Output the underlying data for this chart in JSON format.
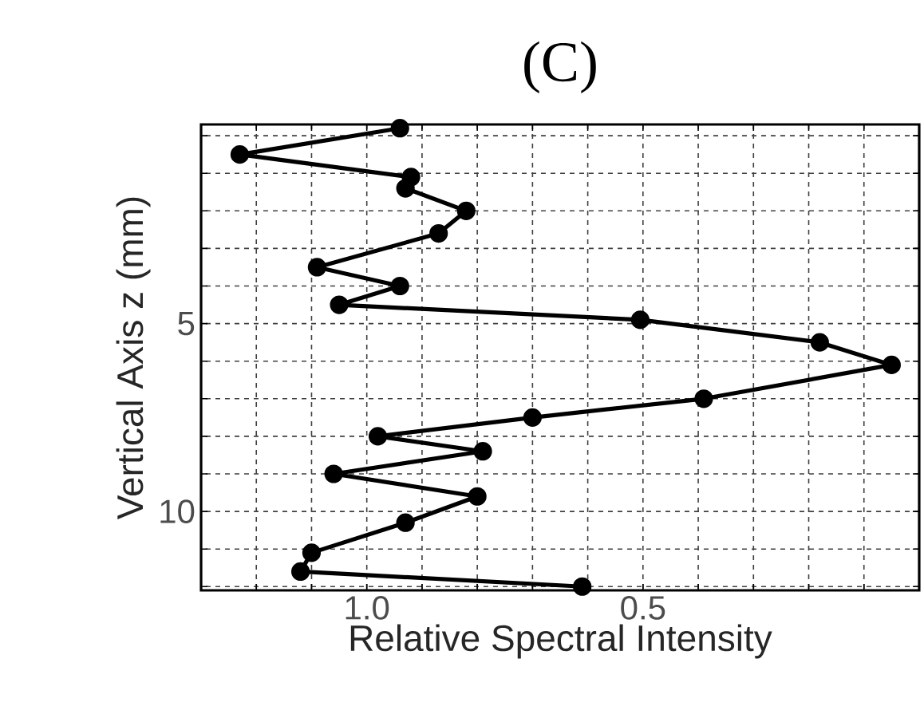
{
  "chart_data": {
    "type": "line",
    "title": "(C)",
    "xlabel": "Relative Spectral Intensity",
    "ylabel": "Vertical Axis z (mm)",
    "x": [
      0.94,
      1.23,
      0.92,
      0.93,
      0.82,
      0.87,
      1.09,
      0.94,
      1.05,
      0.505,
      0.18,
      0.05,
      0.39,
      0.7,
      0.98,
      0.79,
      1.06,
      0.8,
      0.93,
      1.1,
      1.12,
      0.61
    ],
    "values": [
      -0.2,
      0.5,
      1.1,
      1.4,
      2.0,
      2.6,
      3.5,
      4.0,
      4.5,
      4.9,
      5.5,
      6.1,
      7.0,
      7.5,
      8.0,
      8.4,
      9.0,
      9.6,
      10.3,
      11.1,
      11.6,
      12.0
    ],
    "color": "#000000",
    "marker": "circle",
    "line_style": "solid",
    "grid": true,
    "xlim": [
      1.3,
      0
    ],
    "ylim": [
      12.1,
      -0.3
    ],
    "xticks": [
      {
        "value": 1.2,
        "label": null
      },
      {
        "value": 1.1,
        "label": null
      },
      {
        "value": 1.0,
        "label": "1.0"
      },
      {
        "value": 0.9,
        "label": null
      },
      {
        "value": 0.8,
        "label": null
      },
      {
        "value": 0.7,
        "label": null
      },
      {
        "value": 0.6,
        "label": null
      },
      {
        "value": 0.5,
        "label": "0.5"
      },
      {
        "value": 0.4,
        "label": null
      },
      {
        "value": 0.3,
        "label": null
      },
      {
        "value": 0.2,
        "label": null
      },
      {
        "value": 0.1,
        "label": null
      }
    ],
    "yticks": [
      {
        "value": 0,
        "label": null
      },
      {
        "value": 1,
        "label": null
      },
      {
        "value": 2,
        "label": null
      },
      {
        "value": 3,
        "label": null
      },
      {
        "value": 4,
        "label": null
      },
      5,
      {
        "value": 6,
        "label": null
      },
      {
        "value": 7,
        "label": null
      },
      {
        "value": 8,
        "label": null
      },
      {
        "value": 9,
        "label": null
      },
      10,
      {
        "value": 11,
        "label": null
      },
      {
        "value": 12,
        "label": null
      }
    ]
  }
}
